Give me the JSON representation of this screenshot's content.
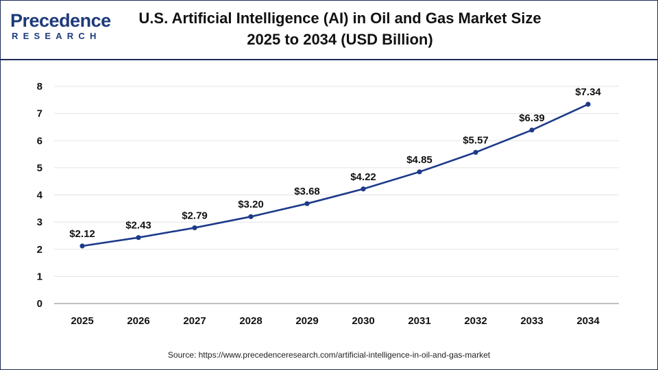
{
  "brand": {
    "name": "Precedence",
    "sub": "RESEARCH",
    "color": "#1d3a7a"
  },
  "header": {
    "title_line1": "U.S. Artificial Intelligence (AI) in Oil and Gas Market Size",
    "title_line2": "2025 to 2034 (USD Billion)"
  },
  "chart_data": {
    "type": "line",
    "title": "U.S. Artificial Intelligence (AI) in Oil and Gas Market Size 2025 to 2034 (USD Billion)",
    "x": [
      "2025",
      "2026",
      "2027",
      "2028",
      "2029",
      "2030",
      "2031",
      "2032",
      "2033",
      "2034"
    ],
    "series": [
      {
        "values": [
          2.12,
          2.43,
          2.79,
          3.2,
          3.68,
          4.22,
          4.85,
          5.57,
          6.39,
          7.34
        ],
        "labels": [
          "$2.12",
          "$2.43",
          "$2.79",
          "$3.20",
          "$3.68",
          "$4.22",
          "$4.85",
          "$5.57",
          "$6.39",
          "$7.34"
        ],
        "color": "#1d3a8a"
      }
    ],
    "xlabel": "",
    "ylabel": "",
    "ylim": [
      0,
      8
    ],
    "yticks": [
      0,
      1,
      2,
      3,
      4,
      5,
      6,
      7,
      8
    ],
    "grid": true,
    "legend": "none"
  },
  "footer": {
    "source": "Source: https://www.precedenceresearch.com/artificial-intelligence-in-oil-and-gas-market"
  }
}
